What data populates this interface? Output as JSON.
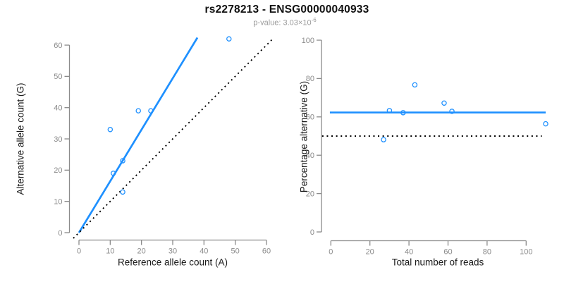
{
  "header": {
    "title": "rs2278213 - ENSG00000040933",
    "p_label": "p-value: 3.03×10",
    "p_exponent": "-6"
  },
  "colors": {
    "accent_blue": "#1E90FF",
    "axis_gray": "#8A8A8A",
    "tick_label_gray": "#8C8C8C",
    "label_black": "#1A1A1A",
    "subtitle_gray": "#9A9A9A",
    "dotted_black": "#000000",
    "background": "#FFFFFF"
  },
  "chart_data": [
    {
      "type": "scatter",
      "panel": "left",
      "xlabel": "Reference allele count (A)",
      "ylabel": "Alternative allele count (G)",
      "xlim": [
        0,
        60
      ],
      "ylim": [
        0,
        60
      ],
      "xticks": [
        0,
        10,
        20,
        30,
        40,
        50,
        60
      ],
      "yticks": [
        0,
        10,
        20,
        30,
        40,
        50,
        60
      ],
      "grid": false,
      "legend": "none",
      "points": [
        [
          10,
          33
        ],
        [
          11,
          19
        ],
        [
          14,
          23
        ],
        [
          14,
          13
        ],
        [
          19,
          39
        ],
        [
          23,
          39
        ],
        [
          48,
          62
        ]
      ],
      "lines": [
        {
          "name": "regression-line",
          "style": "solid",
          "color_key": "accent_blue",
          "from": [
            0,
            0
          ],
          "to": [
            37.9,
            62.4
          ]
        },
        {
          "name": "identity-line",
          "style": "dotted",
          "color_key": "dotted_black",
          "from": [
            -1.8,
            -1.8
          ],
          "to": [
            62.4,
            62.4
          ]
        }
      ]
    },
    {
      "type": "scatter",
      "panel": "right",
      "xlabel": "Total number of reads",
      "ylabel": "Percentage alternative (G)",
      "xlim": [
        0,
        110
      ],
      "ylim": [
        0,
        100
      ],
      "xticks": [
        0,
        20,
        40,
        60,
        80,
        100
      ],
      "yticks": [
        0,
        20,
        40,
        60,
        80,
        100
      ],
      "grid": false,
      "legend": "none",
      "points": [
        [
          27,
          48.1
        ],
        [
          30,
          63.3
        ],
        [
          37,
          62.2
        ],
        [
          43,
          76.7
        ],
        [
          58,
          67.2
        ],
        [
          62,
          62.9
        ],
        [
          110,
          56.4
        ]
      ],
      "lines": [
        {
          "name": "mean-percentage-line",
          "style": "solid",
          "color_key": "accent_blue",
          "from": [
            -0.5,
            62.3
          ],
          "to": [
            110,
            62.3
          ]
        },
        {
          "name": "fifty-percent-line",
          "style": "dotted",
          "color_key": "dotted_black",
          "from": [
            -4.5,
            50
          ],
          "to": [
            108,
            50
          ]
        }
      ]
    }
  ]
}
